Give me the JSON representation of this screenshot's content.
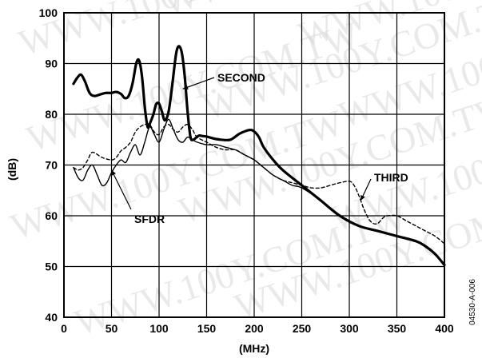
{
  "chart_data": {
    "type": "line",
    "xlabel": "(MHz)",
    "ylabel": "(dB)",
    "xlim": [
      0,
      400
    ],
    "ylim": [
      40,
      100
    ],
    "x_ticks": [
      0,
      50,
      100,
      150,
      200,
      250,
      300,
      350,
      400
    ],
    "y_ticks": [
      40,
      50,
      60,
      70,
      80,
      90,
      100
    ],
    "grid": true,
    "figure_code": "04530-A-006",
    "watermark": "WWW.100Y.COM.TW",
    "series": [
      {
        "name": "SECOND",
        "style": "thick-solid",
        "x": [
          10,
          14,
          18,
          22,
          27,
          32,
          38,
          44,
          50,
          55,
          60,
          64,
          68,
          72,
          76,
          79,
          82,
          85,
          88,
          91,
          94,
          97,
          100,
          103,
          106,
          110,
          114,
          118,
          121,
          124,
          127,
          130,
          133,
          136,
          139,
          142,
          146,
          150,
          158,
          165,
          175,
          185,
          195,
          200,
          205,
          210,
          220,
          230,
          250,
          270,
          290,
          310,
          330,
          350,
          370,
          380,
          390,
          400
        ],
        "y": [
          86,
          87.2,
          87.8,
          86.5,
          84.2,
          83.6,
          83.9,
          84.2,
          84.2,
          84.4,
          84.0,
          83.2,
          83.6,
          86.0,
          90.0,
          90.6,
          87.5,
          81.5,
          77.5,
          78.5,
          80.0,
          82.0,
          82.1,
          80.5,
          78.8,
          80.5,
          86.0,
          92.0,
          93.4,
          92.0,
          87.5,
          80.5,
          75.5,
          75.0,
          75.4,
          75.8,
          75.7,
          75.6,
          75.2,
          75.0,
          75.0,
          76.2,
          76.9,
          76.6,
          75.5,
          73.5,
          71.0,
          69.0,
          66.0,
          63.0,
          60.0,
          58.0,
          57.0,
          56.0,
          55.0,
          54.0,
          52.5,
          50.3
        ]
      },
      {
        "name": "THIRD",
        "style": "dashed",
        "x": [
          10,
          15,
          20,
          25,
          30,
          40,
          50,
          55,
          60,
          65,
          70,
          75,
          80,
          85,
          90,
          95,
          100,
          105,
          110,
          115,
          120,
          125,
          130,
          135,
          140,
          150,
          160,
          170,
          180,
          190,
          200,
          210,
          220,
          230,
          240,
          250,
          260,
          270,
          280,
          290,
          300,
          305,
          310,
          315,
          320,
          325,
          330,
          335,
          340,
          350,
          360,
          370,
          380,
          390,
          400
        ],
        "y": [
          69.5,
          69.0,
          69.5,
          71.0,
          72.5,
          71.5,
          71.0,
          71.5,
          72.8,
          73.5,
          74.5,
          76.5,
          77.5,
          78.0,
          78.0,
          76.5,
          76.0,
          77.5,
          78.0,
          77.0,
          76.5,
          77.5,
          78.0,
          77.0,
          75.5,
          74.5,
          73.5,
          73.0,
          73.0,
          72.0,
          71.0,
          69.5,
          68.0,
          67.0,
          66.5,
          66.0,
          65.5,
          65.5,
          66.0,
          66.5,
          66.8,
          66.0,
          64.0,
          61.5,
          59.5,
          58.5,
          58.5,
          59.5,
          60.0,
          60.0,
          59.0,
          58.0,
          57.0,
          56.0,
          54.5
        ]
      },
      {
        "name": "SFDR",
        "style": "thin-solid",
        "x": [
          10,
          15,
          20,
          25,
          30,
          35,
          40,
          45,
          50,
          55,
          60,
          65,
          70,
          75,
          80,
          85,
          90,
          95,
          100,
          105,
          110,
          115,
          120,
          125,
          130,
          135,
          140,
          150,
          160,
          170,
          180,
          190,
          200,
          210,
          220,
          230,
          240,
          250,
          270,
          290,
          310,
          330,
          350,
          370,
          380,
          390,
          400
        ],
        "y": [
          69.5,
          67.5,
          67.0,
          69.0,
          70.0,
          68.0,
          66.0,
          66.5,
          68.5,
          70.0,
          71.0,
          70.5,
          72.5,
          74.0,
          72.0,
          74.5,
          77.5,
          76.0,
          74.5,
          77.0,
          79.0,
          77.0,
          75.0,
          74.5,
          75.5,
          75.0,
          74.5,
          74.0,
          74.0,
          73.5,
          73.0,
          72.0,
          71.0,
          69.5,
          68.0,
          67.0,
          66.0,
          65.5,
          63.0,
          60.0,
          58.0,
          57.0,
          56.0,
          55.0,
          54.0,
          52.5,
          50.3
        ]
      }
    ],
    "annotations": [
      {
        "text": "SECOND",
        "series": "SECOND",
        "point": [
          125,
          85
        ]
      },
      {
        "text": "THIRD",
        "series": "THIRD",
        "point": [
          312,
          63
        ]
      },
      {
        "text": "SFDR",
        "series": "SFDR",
        "point": [
          50,
          69
        ]
      }
    ]
  }
}
